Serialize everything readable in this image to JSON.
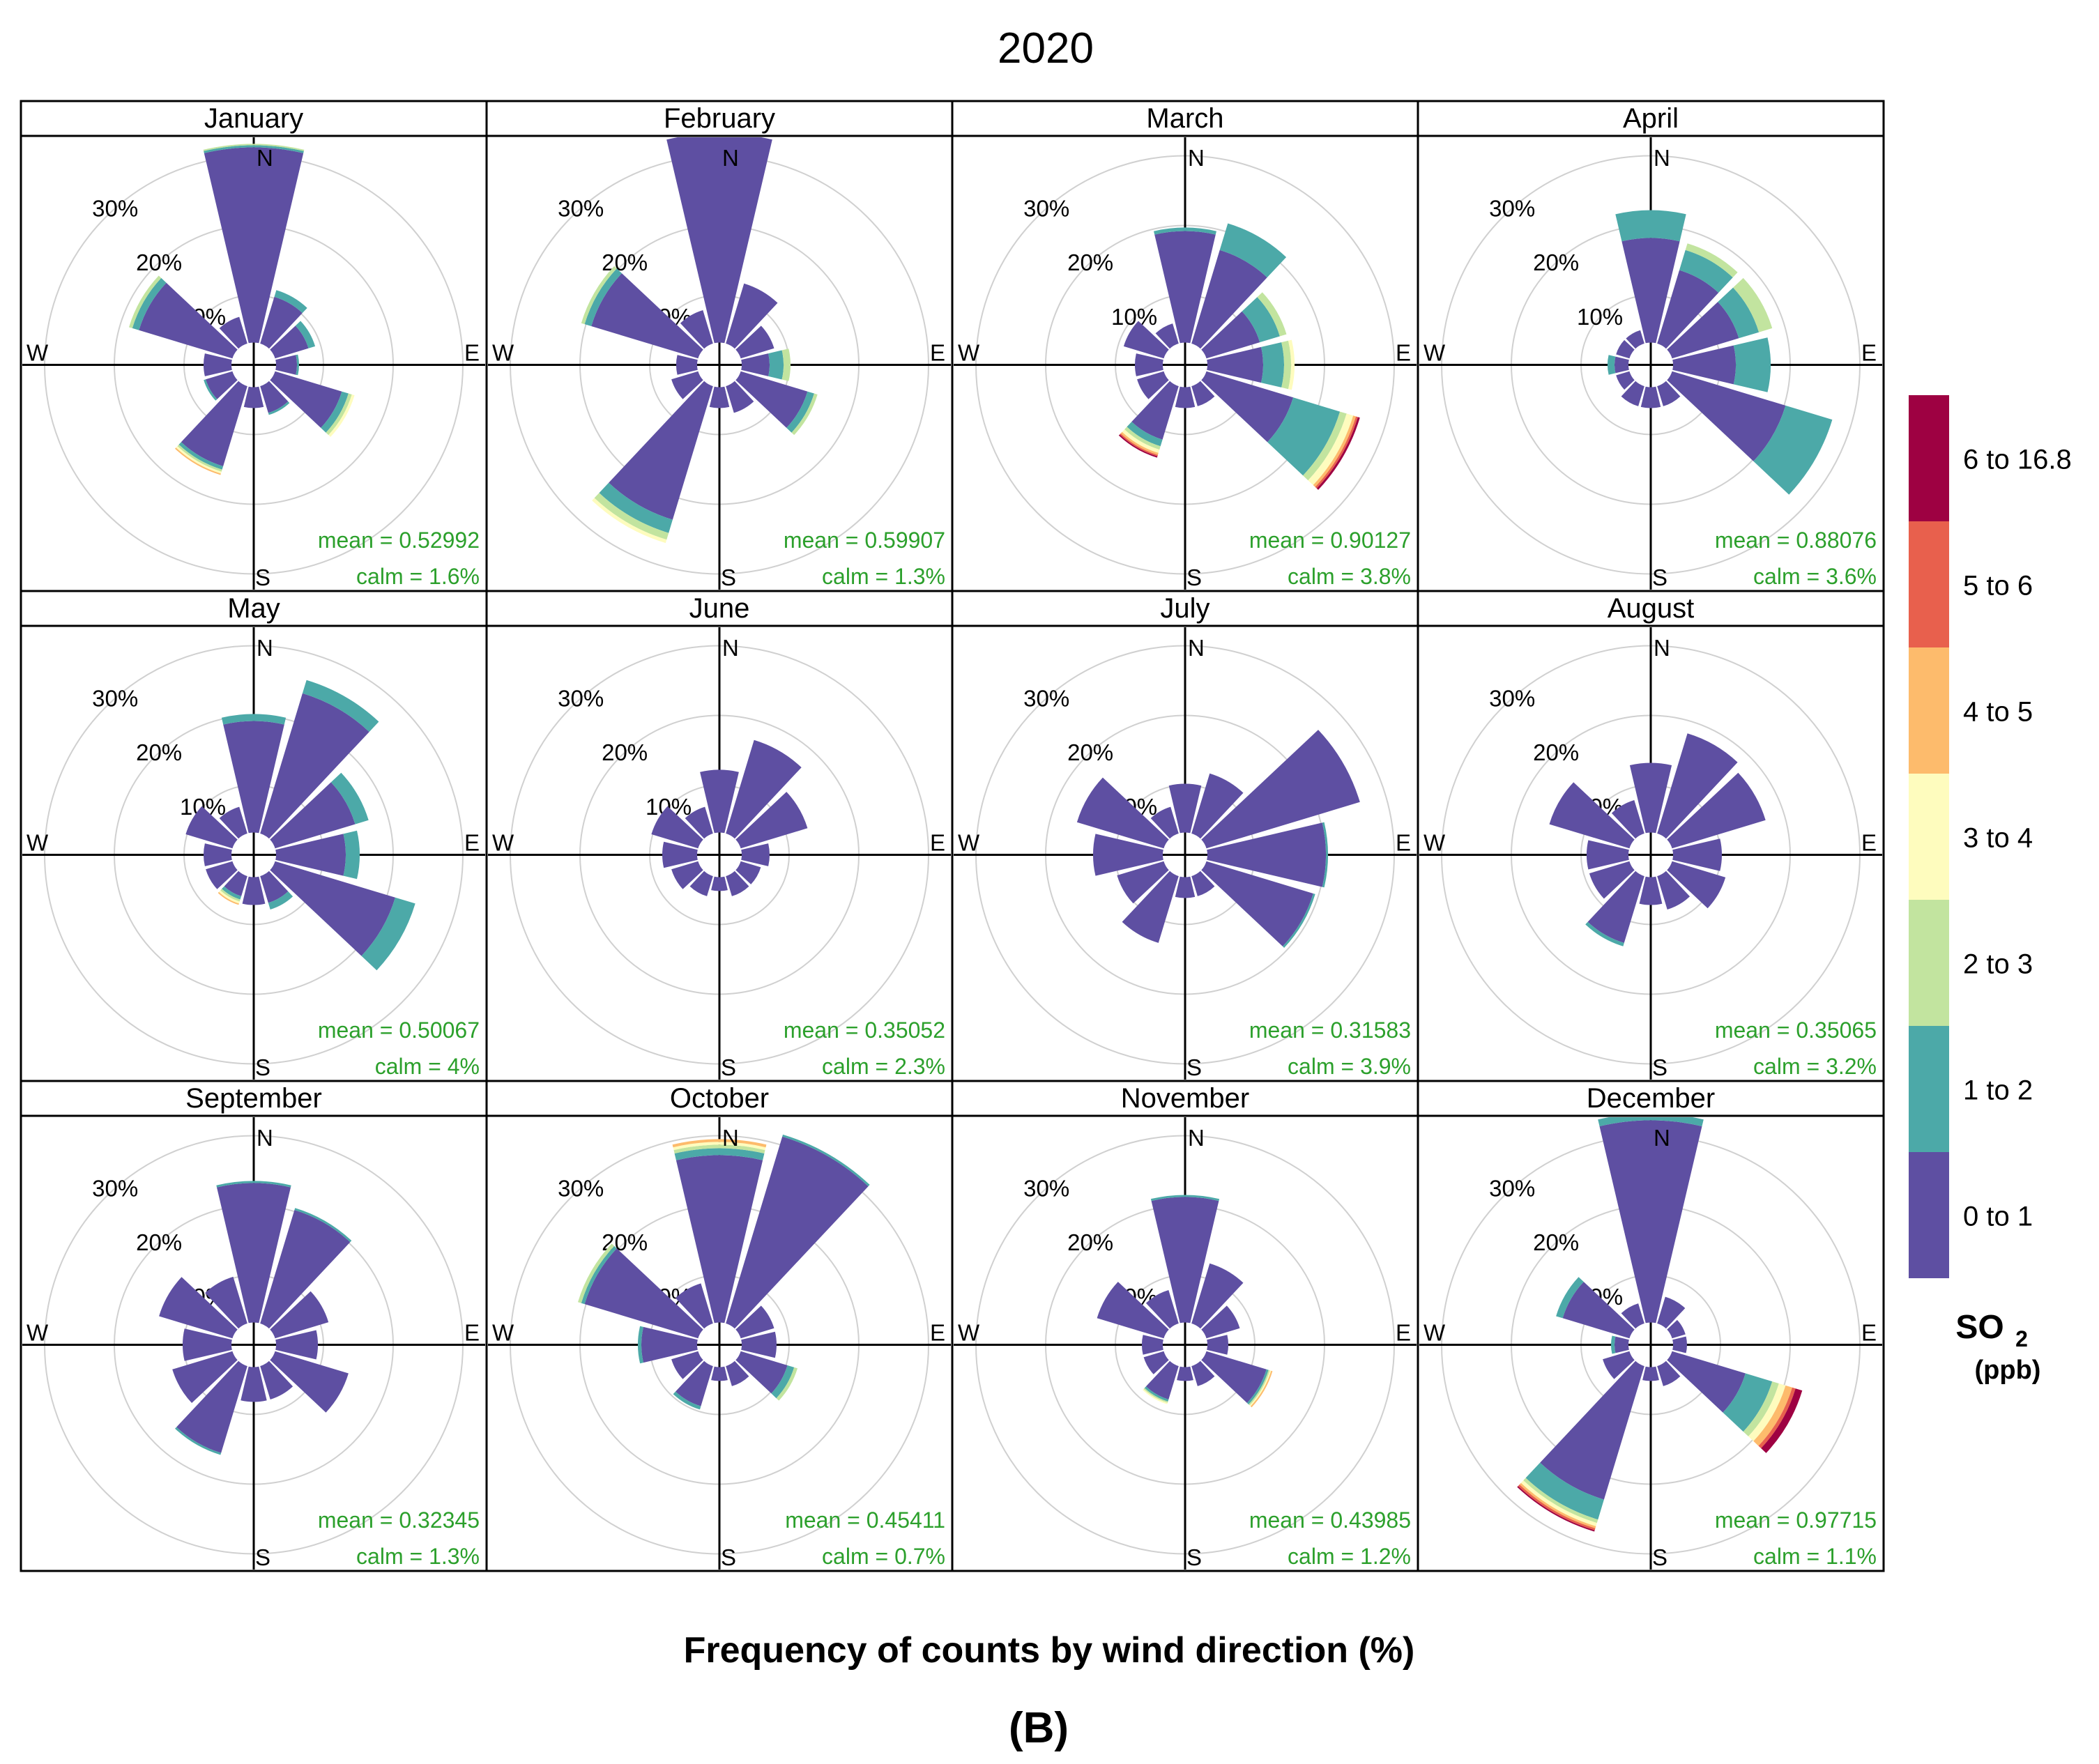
{
  "chart_data": {
    "type": "windrose",
    "title": "2020",
    "xlabel": "Frequency of counts by wind direction (%)",
    "caption": "(B)",
    "legend": {
      "title": "SO",
      "title_sub": "2",
      "unit": "(ppb)",
      "placement": "right",
      "bins": [
        {
          "label": "0 to 1",
          "color": "#5e4fa2"
        },
        {
          "label": "1 to 2",
          "color": "#4ca9a8"
        },
        {
          "label": "2 to 3",
          "color": "#c2e49f"
        },
        {
          "label": "3 to 4",
          "color": "#fefcbe"
        },
        {
          "label": "4 to 5",
          "color": "#fdbb6c"
        },
        {
          "label": "5 to 6",
          "color": "#e8604d"
        },
        {
          "label": "6 to 16.8",
          "color": "#9e0142"
        }
      ]
    },
    "direction_labels": [
      "N",
      "E",
      "S",
      "W"
    ],
    "ring_labels": [
      "10%",
      "20%",
      "30%"
    ],
    "rmax": 30,
    "directions_deg": [
      0,
      30,
      60,
      90,
      120,
      150,
      180,
      210,
      240,
      270,
      300,
      330
    ],
    "panels": [
      {
        "month": "January",
        "mean": "mean = 0.52992",
        "calm": "calm = 1.6%",
        "bins": [
          [
            28,
            0.3,
            0.2
          ],
          [
            7,
            1
          ],
          [
            5,
            1
          ],
          [
            3,
            0.3
          ],
          [
            10,
            1,
            0.5,
            0.4
          ],
          [
            4,
            0.3
          ],
          [
            3
          ],
          [
            12,
            0.5,
            0.3,
            0.3,
            0.2
          ],
          [
            4,
            0.3
          ],
          [
            4
          ],
          [
            14,
            1,
            0.5
          ],
          [
            4
          ]
        ]
      },
      {
        "month": "February",
        "mean": "mean = 0.59907",
        "calm": "calm = 1.3%",
        "bins": [
          [
            30
          ],
          [
            9
          ],
          [
            5
          ],
          [
            4,
            2,
            1
          ],
          [
            10,
            1,
            0.5
          ],
          [
            4
          ],
          [
            3
          ],
          [
            20,
            2,
            1,
            0.5
          ],
          [
            4
          ],
          [
            3
          ],
          [
            16,
            1,
            0.5
          ],
          [
            5
          ]
        ]
      },
      {
        "month": "March",
        "mean": "mean = 0.90127",
        "calm": "calm = 3.8%",
        "bins": [
          [
            16,
            0.5
          ],
          [
            14,
            4
          ],
          [
            8,
            3,
            1
          ],
          [
            8,
            3,
            1,
            0.5
          ],
          [
            13,
            7,
            1,
            1,
            0.4,
            0.3,
            0.3
          ],
          [
            3
          ],
          [
            3
          ],
          [
            8,
            1,
            0.5,
            0.5,
            0.3,
            0.2,
            0.2
          ],
          [
            4
          ],
          [
            4
          ],
          [
            6
          ],
          [
            3
          ]
        ]
      },
      {
        "month": "April",
        "mean": "mean = 0.88076",
        "calm": "calm = 3.6%",
        "bins": [
          [
            15,
            4
          ],
          [
            11,
            3,
            1
          ],
          [
            10,
            3,
            2
          ],
          [
            9,
            5
          ],
          [
            17,
            7
          ],
          [
            3
          ],
          [
            3
          ],
          [
            3
          ],
          [
            2
          ],
          [
            2,
            1
          ],
          [
            2
          ],
          [
            2
          ]
        ]
      },
      {
        "month": "May",
        "mean": "mean = 0.50067",
        "calm": "calm = 4%",
        "bins": [
          [
            16,
            1
          ],
          [
            21,
            2
          ],
          [
            12,
            2
          ],
          [
            10,
            2
          ],
          [
            18,
            3
          ],
          [
            4,
            1
          ],
          [
            4
          ],
          [
            3,
            0.5,
            0.3,
            0.3,
            0.2
          ],
          [
            4
          ],
          [
            4
          ],
          [
            7
          ],
          [
            4
          ]
        ]
      },
      {
        "month": "June",
        "mean": "mean = 0.35052",
        "calm": "calm = 2.3%",
        "bins": [
          [
            9
          ],
          [
            14
          ],
          [
            10
          ],
          [
            4
          ],
          [
            3
          ],
          [
            3
          ],
          [
            2
          ],
          [
            3
          ],
          [
            4
          ],
          [
            5
          ],
          [
            7
          ],
          [
            4
          ]
        ]
      },
      {
        "month": "July",
        "mean": "mean = 0.31583",
        "calm": "calm = 3.9%",
        "bins": [
          [
            7
          ],
          [
            9
          ],
          [
            23
          ],
          [
            17,
            0.3
          ],
          [
            16,
            0.3
          ],
          [
            3
          ],
          [
            3
          ],
          [
            10
          ],
          [
            7
          ],
          [
            10
          ],
          [
            13
          ],
          [
            4
          ]
        ]
      },
      {
        "month": "August",
        "mean": "mean = 0.35065",
        "calm": "calm = 3.2%",
        "bins": [
          [
            10
          ],
          [
            15
          ],
          [
            14
          ],
          [
            7
          ],
          [
            8
          ],
          [
            5
          ],
          [
            4
          ],
          [
            10,
            0.5
          ],
          [
            6
          ],
          [
            6
          ],
          [
            12
          ],
          [
            5
          ]
        ]
      },
      {
        "month": "September",
        "mean": "mean = 0.32345",
        "calm": "calm = 1.3%",
        "bins": [
          [
            20,
            0.3
          ],
          [
            17,
            0.3
          ],
          [
            8
          ],
          [
            6
          ],
          [
            11
          ],
          [
            5
          ],
          [
            5
          ],
          [
            13,
            0.3
          ],
          [
            9
          ],
          [
            7
          ],
          [
            11
          ],
          [
            7
          ]
        ]
      },
      {
        "month": "October",
        "mean": "mean = 0.45411",
        "calm": "calm = 0.7%",
        "bins": [
          [
            24,
            1,
            0.5,
            0.4,
            0.4
          ],
          [
            28,
            0.3
          ],
          [
            5
          ],
          [
            5
          ],
          [
            7,
            1,
            0.5
          ],
          [
            3
          ],
          [
            2
          ],
          [
            6,
            0.5
          ],
          [
            4
          ],
          [
            8,
            0.5
          ],
          [
            17,
            0.5,
            0.5
          ],
          [
            6
          ]
        ]
      },
      {
        "month": "November",
        "mean": "mean = 0.43985",
        "calm": "calm = 1.2%",
        "bins": [
          [
            18,
            0.3
          ],
          [
            9
          ],
          [
            5
          ],
          [
            3
          ],
          [
            9,
            0.3,
            0.2,
            0.2,
            0.2
          ],
          [
            3
          ],
          [
            2
          ],
          [
            5,
            0.3,
            0.2,
            0.2
          ],
          [
            3
          ],
          [
            3
          ],
          [
            10
          ],
          [
            5
          ]
        ]
      },
      {
        "month": "December",
        "mean": "mean = 0.97715",
        "calm": "calm = 1.1%",
        "bins": [
          [
            29,
            1
          ],
          [
            4
          ],
          [
            2
          ],
          [
            2
          ],
          [
            11,
            4,
            1,
            1,
            1,
            0.5,
            1
          ],
          [
            3
          ],
          [
            2
          ],
          [
            20,
            3,
            0.5,
            0.5,
            0.3,
            0.3,
            0.2
          ],
          [
            4
          ],
          [
            2,
            0.5
          ],
          [
            10,
            1
          ],
          [
            3
          ]
        ]
      }
    ]
  }
}
